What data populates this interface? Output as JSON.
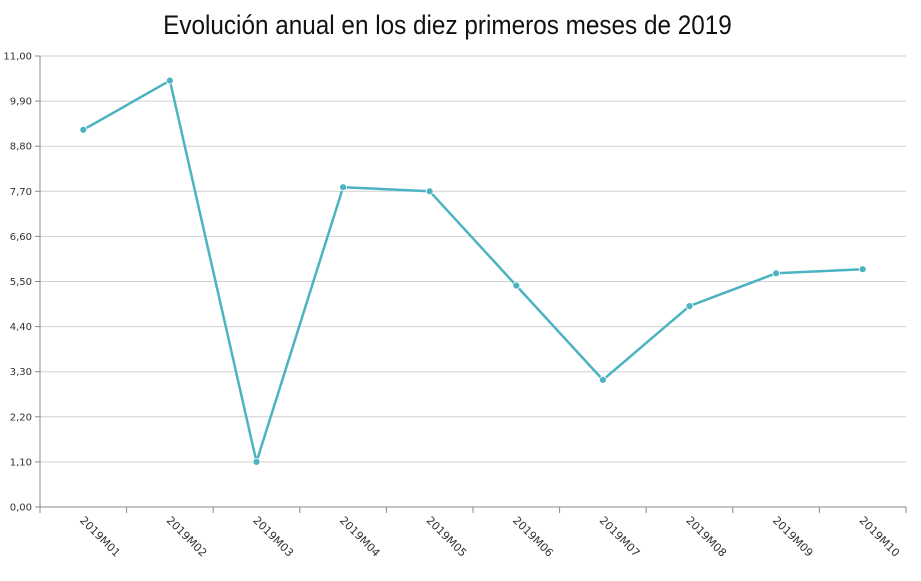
{
  "chart_data": {
    "type": "line",
    "title": "Evolución anual en los diez primeros meses de 2019",
    "xlabel": "",
    "ylabel": "",
    "categories": [
      "2019M01",
      "2019M02",
      "2019M03",
      "2019M04",
      "2019M05",
      "2019M06",
      "2019M07",
      "2019M08",
      "2019M09",
      "2019M10"
    ],
    "series": [
      {
        "values": [
          9.2,
          10.4,
          1.1,
          7.8,
          7.7,
          5.4,
          3.1,
          4.9,
          5.7,
          5.8
        ]
      }
    ],
    "ylim": [
      0,
      11
    ],
    "yticks": [
      "0,00",
      "1,10",
      "2,20",
      "3,30",
      "4,40",
      "5,50",
      "6,60",
      "7,70",
      "8,80",
      "9,90",
      "11,00"
    ],
    "grid": true,
    "legend": "none",
    "colors": {
      "line": "#4bb3c1",
      "grid": "#d0d0d0",
      "axis": "#888888"
    }
  }
}
